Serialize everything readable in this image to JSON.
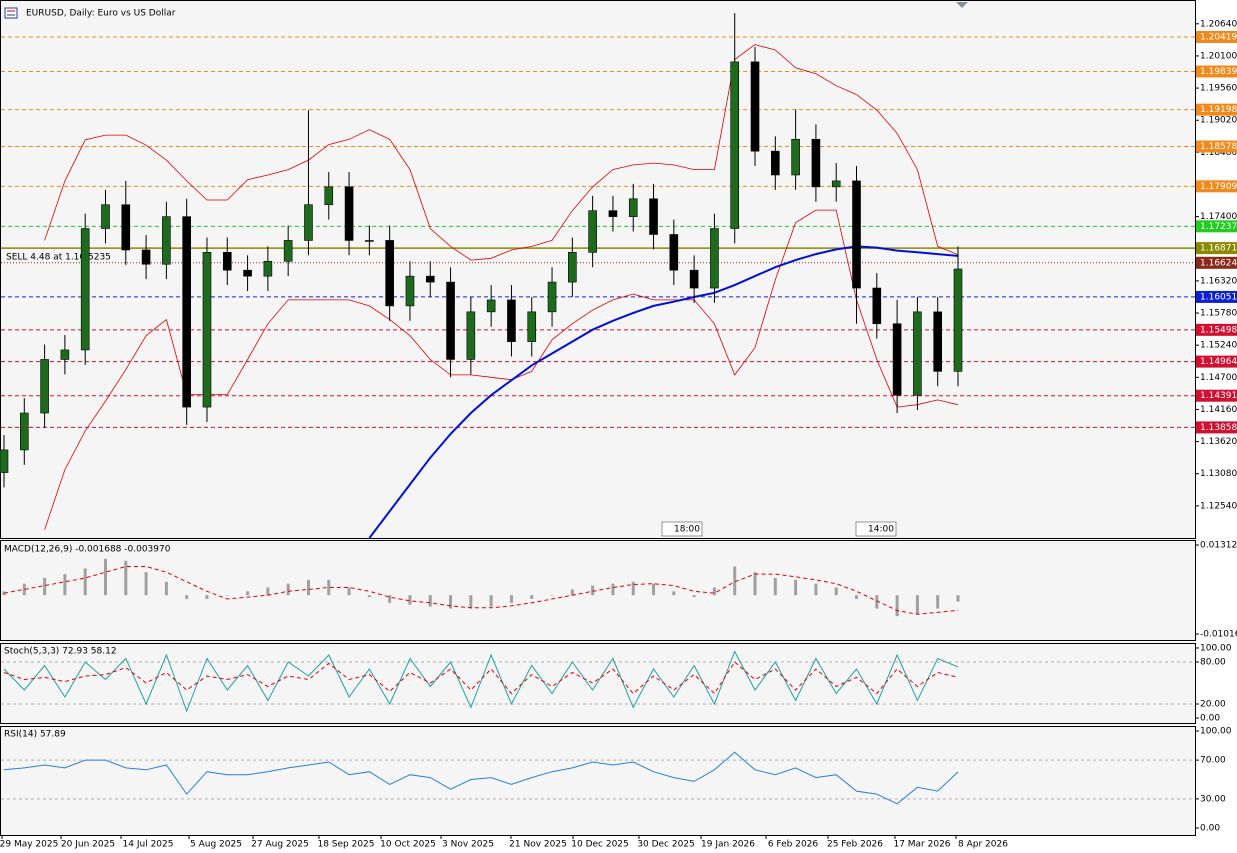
{
  "chart_data": [
    {
      "type": "candlestick",
      "title": "EURUSD, Daily: Euro vs US Dollar",
      "annotation": "SELL 4.48 at 1.16.5235",
      "up_color": "#1e6b1e",
      "down_color": "#000000",
      "wick_color": "#000000",
      "ylim": [
        1.12,
        1.2104
      ],
      "yticks": [
        {
          "value": 1.2064,
          "label": "1.20640"
        },
        {
          "value": 1.201,
          "label": "1.20100"
        },
        {
          "value": 1.1956,
          "label": "1.19560"
        },
        {
          "value": 1.1902,
          "label": "1.19020"
        },
        {
          "value": 1.1848,
          "label": "1.18480"
        },
        {
          "value": 1.174,
          "label": "1.17400"
        },
        {
          "value": 1.1632,
          "label": "1.16320"
        },
        {
          "value": 1.1578,
          "label": "1.15780"
        },
        {
          "value": 1.1524,
          "label": "1.15240"
        },
        {
          "value": 1.147,
          "label": "1.14700"
        },
        {
          "value": 1.1416,
          "label": "1.14160"
        },
        {
          "value": 1.1362,
          "label": "1.13620"
        },
        {
          "value": 1.1308,
          "label": "1.13080"
        },
        {
          "value": 1.1254,
          "label": "1.12540"
        }
      ],
      "date_labels": [
        "29 May 2025",
        "20 Jun 2025",
        "14 Jul 2025",
        "5 Aug 2025",
        "27 Aug 2025",
        "18 Sep 2025",
        "10 Oct 2025",
        "3 Nov 2025",
        "21 Nov 2025",
        "10 Dec 2025",
        "30 Dec 2025",
        "19 Jan 2026",
        "6 Feb 2026",
        "25 Feb 2026",
        "17 Mar 2026",
        "8 Apr 2026"
      ],
      "markers": [
        "18:00",
        "14:00"
      ],
      "open": [
        1.131,
        1.1348,
        1.141,
        1.15,
        1.1516,
        1.172,
        1.176,
        1.1684,
        1.166,
        1.174,
        1.142,
        1.168,
        1.165,
        1.164,
        1.1665,
        1.17,
        1.176,
        1.179,
        1.17,
        1.17,
        1.159,
        1.164,
        1.163,
        1.15,
        1.158,
        1.16,
        1.153,
        1.158,
        1.163,
        1.168,
        1.175,
        1.174,
        1.177,
        1.171,
        1.165,
        1.162,
        1.172,
        1.2,
        1.185,
        1.181,
        1.187,
        1.179,
        1.18,
        1.162,
        1.156,
        1.144,
        1.158,
        1.148
      ],
      "high": [
        1.1373,
        1.1435,
        1.1525,
        1.1541,
        1.1745,
        1.1785,
        1.18,
        1.1709,
        1.1765,
        1.177,
        1.1705,
        1.1705,
        1.1675,
        1.169,
        1.1725,
        1.1919,
        1.1815,
        1.1815,
        1.1725,
        1.1725,
        1.1665,
        1.1665,
        1.1655,
        1.1605,
        1.1625,
        1.1625,
        1.1605,
        1.1655,
        1.1705,
        1.1775,
        1.1775,
        1.1795,
        1.1795,
        1.1735,
        1.1675,
        1.1745,
        1.2082,
        1.2025,
        1.1875,
        1.192,
        1.1895,
        1.183,
        1.1825,
        1.1645,
        1.16,
        1.1605,
        1.1605,
        1.169
      ],
      "low": [
        1.1285,
        1.1323,
        1.1385,
        1.1475,
        1.1491,
        1.1695,
        1.1659,
        1.1635,
        1.1635,
        1.139,
        1.1395,
        1.1625,
        1.1615,
        1.1615,
        1.164,
        1.1675,
        1.1735,
        1.1675,
        1.1675,
        1.1565,
        1.1565,
        1.1605,
        1.147,
        1.1475,
        1.1555,
        1.1505,
        1.1505,
        1.1555,
        1.1605,
        1.1655,
        1.1715,
        1.1715,
        1.1685,
        1.1625,
        1.1595,
        1.1595,
        1.1695,
        1.1825,
        1.1785,
        1.1785,
        1.1765,
        1.1765,
        1.156,
        1.1535,
        1.141,
        1.1415,
        1.1455,
        1.1455
      ],
      "close": [
        1.1348,
        1.141,
        1.15,
        1.1516,
        1.172,
        1.176,
        1.1684,
        1.166,
        1.174,
        1.142,
        1.168,
        1.165,
        1.164,
        1.1665,
        1.17,
        1.176,
        1.179,
        1.17,
        1.17,
        1.159,
        1.164,
        1.163,
        1.15,
        1.158,
        1.16,
        1.153,
        1.158,
        1.163,
        1.168,
        1.175,
        1.174,
        1.177,
        1.171,
        1.165,
        1.162,
        1.172,
        1.2,
        1.185,
        1.181,
        1.187,
        1.179,
        1.18,
        1.162,
        1.156,
        1.144,
        1.158,
        1.148,
        1.1652
      ],
      "series": [
        {
          "color": "#e00000",
          "width": 0.8,
          "values": [
            null,
            null,
            1.17,
            1.18,
            1.1869,
            1.1877,
            1.1877,
            1.186,
            1.1835,
            1.18,
            1.1768,
            1.1768,
            1.1802,
            1.181,
            1.1819,
            1.1835,
            1.1861,
            1.187,
            1.1886,
            1.187,
            1.1819,
            1.172,
            1.169,
            1.1667,
            1.167,
            1.1684,
            1.169,
            1.17,
            1.175,
            1.179,
            1.1819,
            1.1827,
            1.183,
            1.1827,
            1.1819,
            1.1819,
            1.2004,
            1.2029,
            1.202,
            1.199,
            1.198,
            1.196,
            1.1945,
            1.1919,
            1.188,
            1.1819,
            1.169,
            1.1676
          ]
        },
        {
          "color": "#e00000",
          "width": 0.8,
          "values": [
            null,
            null,
            1.1214,
            1.1315,
            1.138,
            1.143,
            1.1483,
            1.154,
            1.1567,
            1.1441,
            1.1441,
            1.1441,
            1.15,
            1.156,
            1.16,
            1.16,
            1.16,
            1.16,
            1.159,
            1.1567,
            1.154,
            1.15,
            1.1474,
            1.1474,
            1.147,
            1.1466,
            1.148,
            1.1533,
            1.156,
            1.1583,
            1.16,
            1.161,
            1.16,
            1.16,
            1.16,
            1.156,
            1.1474,
            1.152,
            1.1634,
            1.173,
            1.1751,
            1.1751,
            1.16,
            1.15,
            1.142,
            1.1424,
            1.1432,
            1.1424
          ]
        },
        {
          "color": "#0010d0",
          "width": 2,
          "values": [
            null,
            null,
            null,
            null,
            null,
            null,
            null,
            null,
            null,
            null,
            null,
            null,
            null,
            null,
            null,
            null,
            null,
            null,
            1.12,
            1.1245,
            1.129,
            1.1335,
            1.1375,
            1.141,
            1.144,
            1.1465,
            1.149,
            1.151,
            1.153,
            1.155,
            1.1565,
            1.1578,
            1.159,
            1.1597,
            1.1605,
            1.1612,
            1.1625,
            1.164,
            1.1655,
            1.1667,
            1.1677,
            1.1685,
            1.169,
            1.1688,
            1.1683,
            1.168,
            1.1677,
            1.1674
          ]
        }
      ],
      "levels": [
        {
          "value": 1.20419,
          "color": "#f08a1c",
          "style": "dashed"
        },
        {
          "value": 1.19839,
          "color": "#f08a1c",
          "style": "dashed"
        },
        {
          "value": 1.19198,
          "color": "#f08a1c",
          "style": "dashed"
        },
        {
          "value": 1.18578,
          "color": "#f08a1c",
          "style": "dashed"
        },
        {
          "value": 1.17909,
          "color": "#f08a1c",
          "style": "dashed"
        },
        {
          "value": 1.17237,
          "color": "#22cc22",
          "style": "dashed"
        },
        {
          "value": 1.16871,
          "color": "#8a8a00",
          "style": "solid"
        },
        {
          "value": 1.16624,
          "color": "#8b2a1a",
          "style": "dotted"
        },
        {
          "value": 1.16051,
          "color": "#1020d0",
          "style": "dashed"
        },
        {
          "value": 1.15498,
          "color": "#d01030",
          "style": "dashed"
        },
        {
          "value": 1.14964,
          "color": "#d01030",
          "style": "dashed"
        },
        {
          "value": 1.14391,
          "color": "#d01030",
          "style": "dashed"
        },
        {
          "value": 1.13858,
          "color": "#d01030",
          "style": "dashed"
        }
      ]
    },
    {
      "type": "macd",
      "title": "MACD(12,26,9) -0.001688 -0.003970",
      "ylim": [
        -0.01173,
        0.01443
      ],
      "yticks": [
        0.013123,
        {
          "value": -0.01016,
          "label": "-0.010160"
        }
      ],
      "histogram_color": "#a0a0a0",
      "signal_color": "#e00000",
      "histogram": [
        0.001,
        0.003,
        0.0045,
        0.0055,
        0.007,
        0.0095,
        0.009,
        0.006,
        0.0035,
        -0.001,
        -0.001,
        0.0,
        0.001,
        0.002,
        0.003,
        0.004,
        0.004,
        0.002,
        -0.0005,
        -0.002,
        -0.0025,
        -0.003,
        -0.0035,
        -0.0035,
        -0.003,
        -0.002,
        -0.001,
        0.0,
        0.0015,
        0.0025,
        0.003,
        0.0035,
        0.003,
        0.001,
        -0.0005,
        0.002,
        0.0075,
        0.006,
        0.0045,
        0.004,
        0.003,
        0.002,
        -0.001,
        -0.0035,
        -0.0055,
        -0.005,
        -0.0035,
        -0.001688
      ],
      "signal": [
        0.0005,
        0.0015,
        0.0025,
        0.0035,
        0.0045,
        0.006,
        0.0075,
        0.0075,
        0.006,
        0.0035,
        0.001,
        -0.001,
        -0.0005,
        0.0,
        0.001,
        0.0015,
        0.002,
        0.002,
        0.001,
        -0.0005,
        -0.0015,
        -0.002,
        -0.0028,
        -0.0033,
        -0.0033,
        -0.0028,
        -0.002,
        -0.001,
        0.0,
        0.001,
        0.002,
        0.0028,
        0.003,
        0.0025,
        0.001,
        0.0005,
        0.0035,
        0.0055,
        0.0055,
        0.0048,
        0.004,
        0.003,
        0.001,
        -0.0015,
        -0.004,
        -0.005,
        -0.0045,
        -0.00397
      ]
    },
    {
      "type": "stochastic",
      "title": "Stoch(5,3,3) 72.93 58.12",
      "ylim": [
        -7.1,
        107.1
      ],
      "yticks": [
        {
          "value": 100,
          "label": "100.00"
        },
        {
          "value": 80,
          "label": "80.00"
        },
        {
          "value": 20,
          "label": "20.00"
        },
        {
          "value": 0,
          "label": "0.00"
        }
      ],
      "grid_levels": [
        80,
        20
      ],
      "series": [
        {
          "color": "#20a0a0",
          "style": "solid",
          "values": [
            70,
            40,
            75,
            30,
            80,
            55,
            85,
            20,
            90,
            10,
            85,
            40,
            75,
            25,
            80,
            60,
            90,
            30,
            70,
            20,
            85,
            45,
            80,
            15,
            90,
            20,
            75,
            35,
            80,
            40,
            85,
            15,
            70,
            30,
            75,
            20,
            95,
            40,
            80,
            25,
            85,
            35,
            70,
            20,
            90,
            25,
            85,
            72.93
          ]
        },
        {
          "color": "#e00000",
          "style": "dashed",
          "values": [
            65,
            55,
            58,
            52,
            60,
            62,
            72,
            50,
            65,
            40,
            60,
            55,
            62,
            45,
            60,
            55,
            78,
            55,
            62,
            38,
            65,
            50,
            70,
            40,
            70,
            35,
            62,
            45,
            65,
            50,
            70,
            35,
            60,
            40,
            62,
            35,
            80,
            55,
            70,
            40,
            70,
            45,
            58,
            35,
            70,
            45,
            65,
            58.12
          ]
        }
      ]
    },
    {
      "type": "rsi",
      "title": "RSI(14) 57.89",
      "ylim": [
        -7.2,
        105.15
      ],
      "yticks": [
        {
          "value": 100,
          "label": "100.00"
        },
        {
          "value": 70,
          "label": "70.00"
        },
        {
          "value": 30,
          "label": "30.00"
        },
        {
          "value": 0,
          "label": "0.00"
        }
      ],
      "grid_levels": [
        70,
        30
      ],
      "series": [
        {
          "color": "#2a7fd4",
          "style": "solid",
          "values": [
            60,
            62,
            65,
            62,
            70,
            70,
            62,
            60,
            65,
            35,
            58,
            55,
            55,
            58,
            62,
            65,
            68,
            55,
            58,
            45,
            55,
            52,
            40,
            50,
            52,
            45,
            52,
            58,
            62,
            68,
            65,
            68,
            58,
            52,
            48,
            60,
            78,
            60,
            55,
            62,
            52,
            55,
            38,
            35,
            25,
            42,
            38,
            57.89
          ]
        }
      ]
    }
  ]
}
